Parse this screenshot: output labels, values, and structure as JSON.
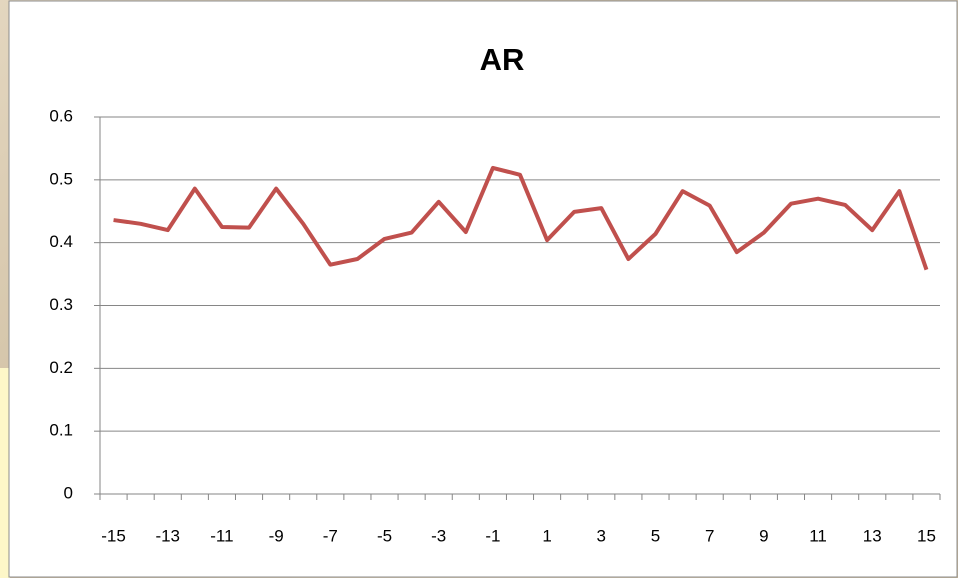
{
  "chart_data": {
    "type": "line",
    "title": "AR",
    "categories": [
      -15,
      null,
      -13,
      null,
      -11,
      null,
      -9,
      null,
      -7,
      null,
      -5,
      null,
      -3,
      null,
      -1,
      null,
      1,
      null,
      3,
      null,
      5,
      null,
      7,
      null,
      9,
      null,
      11,
      null,
      13,
      null,
      15
    ],
    "series": [
      {
        "name": "AR",
        "color": "#c0504d",
        "values": [
          0.436,
          0.43,
          0.42,
          0.486,
          0.425,
          0.424,
          0.486,
          0.43,
          0.365,
          0.374,
          0.406,
          0.416,
          0.465,
          0.417,
          0.519,
          0.508,
          0.404,
          0.449,
          0.455,
          0.374,
          0.414,
          0.482,
          0.459,
          0.385,
          0.416,
          0.462,
          0.47,
          0.46,
          0.42,
          0.482,
          0.357
        ]
      }
    ],
    "ylim": [
      0,
      0.6
    ],
    "yticks": [
      0,
      0.1,
      0.2,
      0.3,
      0.4,
      0.5,
      0.6
    ],
    "grid": true
  }
}
